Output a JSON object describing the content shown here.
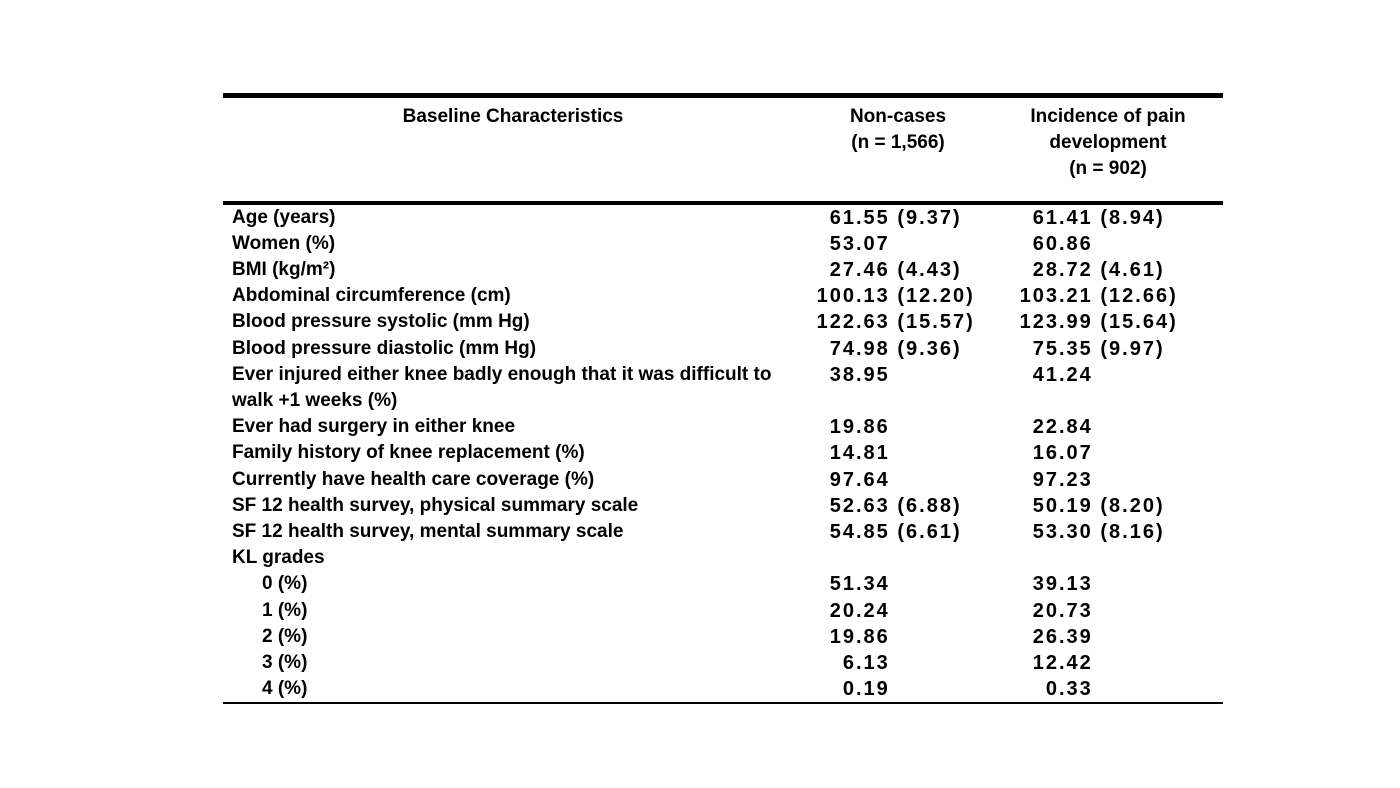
{
  "page": {
    "background": "#ffffff",
    "text_color": "#000000"
  },
  "table": {
    "header": {
      "characteristics": "Baseline Characteristics",
      "noncases": "Non-cases\n(n = 1,566)",
      "incidence": "Incidence of pain\ndevelopment\n(n = 902)"
    },
    "rows": [
      {
        "label": "Age (years)",
        "noncases": "61.55 (9.37)",
        "incidence": "61.41 (8.94)"
      },
      {
        "label": "Women (%)",
        "noncases": "53.07",
        "incidence": "60.86"
      },
      {
        "label": "BMI (kg/m²)",
        "noncases": "27.46 (4.43)",
        "incidence": "28.72 (4.61)"
      },
      {
        "label": "Abdominal circumference (cm)",
        "noncases": "100.13 (12.20)",
        "incidence": "103.21 (12.66)"
      },
      {
        "label": "Blood pressure systolic (mm Hg)",
        "noncases": "122.63 (15.57)",
        "incidence": "123.99 (15.64)"
      },
      {
        "label": "Blood pressure diastolic (mm Hg)",
        "noncases": "74.98 (9.36)",
        "incidence": "75.35 (9.97)"
      },
      {
        "label": "Ever injured either knee badly enough that it was difficult to walk +1 weeks (%)",
        "noncases": "38.95",
        "incidence": "41.24"
      },
      {
        "label": "Ever had surgery in either knee",
        "noncases": "19.86",
        "incidence": "22.84"
      },
      {
        "label": "Family history of knee replacement (%)",
        "noncases": "14.81",
        "incidence": "16.07"
      },
      {
        "label": "Currently have health care coverage (%)",
        "noncases": "97.64",
        "incidence": "97.23"
      },
      {
        "label": "SF 12 health survey, physical summary scale",
        "noncases": "52.63 (6.88)",
        "incidence": "50.19 (8.20)"
      },
      {
        "label": "SF 12 health survey, mental summary scale",
        "noncases": "54.85 (6.61)",
        "incidence": "53.30 (8.16)"
      },
      {
        "label": "KL grades",
        "noncases": "",
        "incidence": ""
      },
      {
        "label": "0 (%)",
        "noncases": "51.34",
        "incidence": "39.13"
      },
      {
        "label": "1 (%)",
        "noncases": "20.24",
        "incidence": "20.73"
      },
      {
        "label": "2 (%)",
        "noncases": "19.86",
        "incidence": "26.39"
      },
      {
        "label": "3 (%)",
        "noncases": "6.13",
        "incidence": "12.42"
      },
      {
        "label": "4 (%)",
        "noncases": "0.19",
        "incidence": "0.33"
      }
    ]
  }
}
